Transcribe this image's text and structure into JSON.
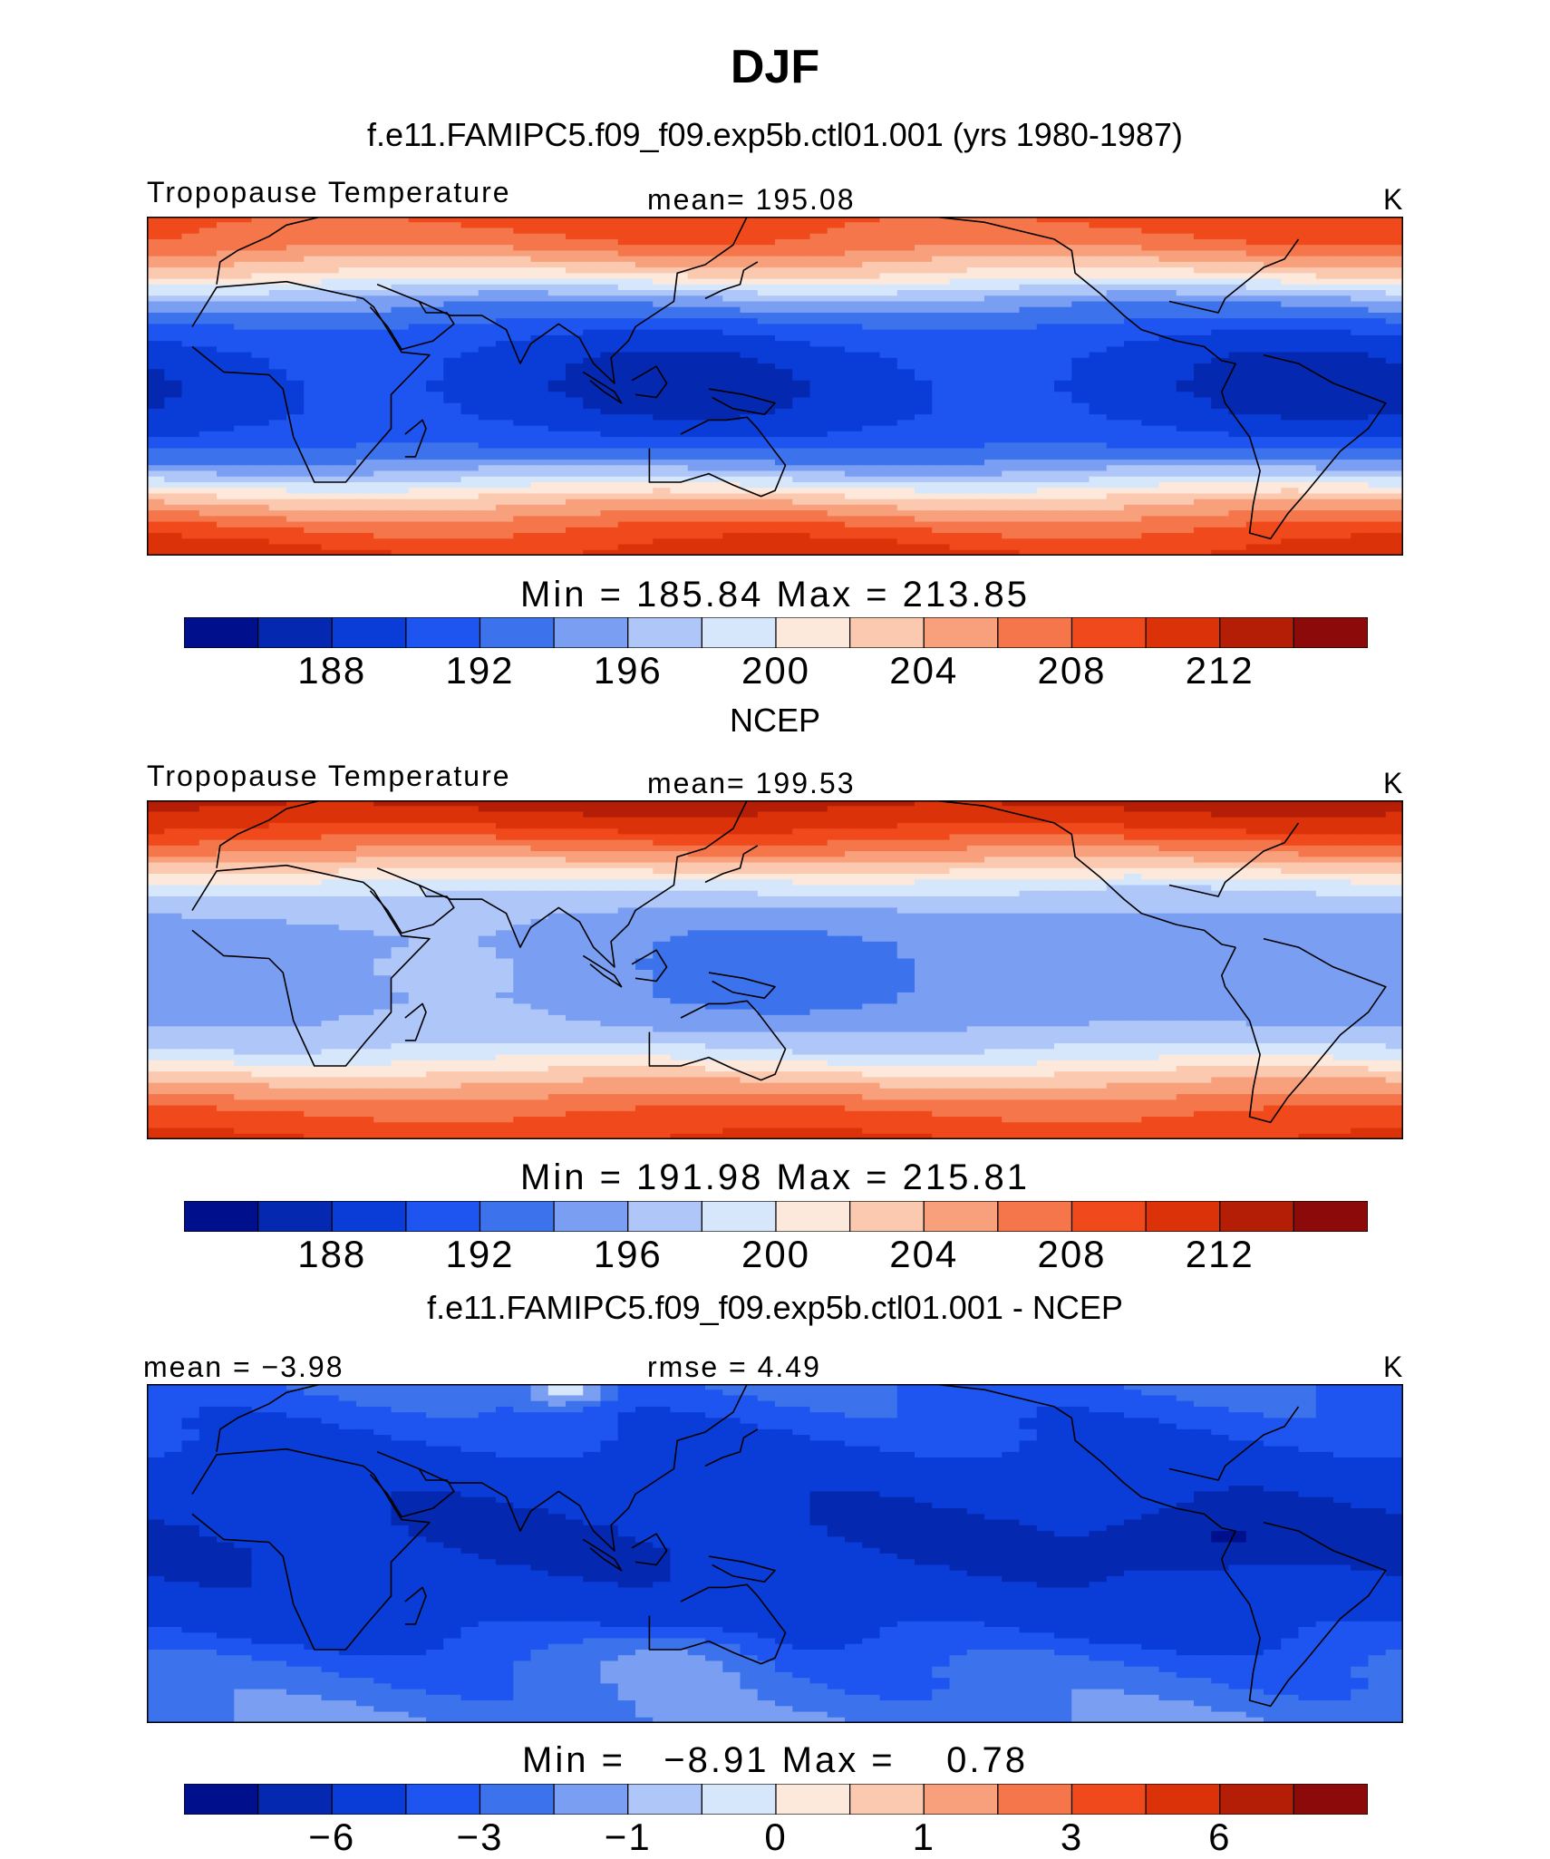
{
  "title": "DJF",
  "panels": [
    {
      "subtitle": "f.e11.FAMIPC5.f09_f09.exp5b.ctl01.001 (yrs 1980-1987)",
      "left_label": "Tropopause Temperature",
      "center_label": "mean= 195.08",
      "right_label": "K",
      "minmax": "Min = 185.84 Max = 213.85",
      "kind": "model"
    },
    {
      "subtitle": "NCEP",
      "left_label": "Tropopause Temperature",
      "center_label": "mean= 199.53",
      "right_label": "K",
      "minmax": "Min = 191.98 Max = 215.81",
      "kind": "obs"
    },
    {
      "subtitle": "f.e11.FAMIPC5.f09_f09.exp5b.ctl01.001 - NCEP",
      "left_label": "mean =  −3.98",
      "center_label": "rmse =    4.49",
      "right_label": "K",
      "minmax": "Min =   −8.91 Max =    0.78",
      "kind": "diff"
    }
  ],
  "colors": {
    "scale": [
      "#00108c",
      "#0428b0",
      "#0a3cd8",
      "#1e55f0",
      "#3c73ec",
      "#7a9ef2",
      "#aec6f8",
      "#d6e6fb",
      "#fde9dc",
      "#fbc9b0",
      "#f8a07c",
      "#f4764a",
      "#f04a1c",
      "#dc320a",
      "#b41e06",
      "#8c0a0a"
    ],
    "land_outline": "#000000"
  },
  "chart_data": [
    {
      "type": "heatmap",
      "title": "DJF",
      "subtitle": "f.e11.FAMIPC5.f09_f09.exp5b.ctl01.001 (yrs 1980-1987)",
      "variable": "Tropopause Temperature",
      "units": "K",
      "mean": 195.08,
      "min": 185.84,
      "max": 213.85,
      "colorbar_ticks": [
        "188",
        "192",
        "196",
        "200",
        "204",
        "208",
        "212"
      ],
      "colorbar_levels": [
        186,
        188,
        190,
        192,
        194,
        196,
        198,
        200,
        202,
        204,
        206,
        208,
        210,
        212,
        214
      ],
      "lat_range": [
        -60,
        60
      ],
      "lon_range": [
        -30,
        330
      ],
      "zonal_profile": {
        "lat": [
          60,
          50,
          40,
          30,
          20,
          10,
          0,
          -10,
          -20,
          -30,
          -40,
          -50,
          -60
        ],
        "value": [
          209,
          207,
          202,
          195,
          191,
          189,
          188.5,
          189,
          191,
          196,
          203,
          208,
          211
        ]
      }
    },
    {
      "type": "heatmap",
      "subtitle": "NCEP",
      "variable": "Tropopause Temperature",
      "units": "K",
      "mean": 199.53,
      "min": 191.98,
      "max": 215.81,
      "colorbar_ticks": [
        "188",
        "192",
        "196",
        "200",
        "204",
        "208",
        "212"
      ],
      "colorbar_levels": [
        186,
        188,
        190,
        192,
        194,
        196,
        198,
        200,
        202,
        204,
        206,
        208,
        210,
        212,
        214
      ],
      "lat_range": [
        -60,
        60
      ],
      "lon_range": [
        -30,
        330
      ],
      "zonal_profile": {
        "lat": [
          60,
          50,
          40,
          30,
          20,
          10,
          0,
          -10,
          -20,
          -30,
          -40,
          -50,
          -60
        ],
        "value": [
          213,
          210,
          205,
          199,
          196,
          195,
          195,
          195,
          196,
          199,
          204,
          208,
          210
        ]
      }
    },
    {
      "type": "heatmap",
      "subtitle": "f.e11.FAMIPC5.f09_f09.exp5b.ctl01.001 - NCEP",
      "units": "K",
      "mean": -3.98,
      "rmse": 4.49,
      "min": -8.91,
      "max": 0.78,
      "colorbar_ticks": [
        "−6",
        "−3",
        "−1",
        "0",
        "1",
        "3",
        "6"
      ],
      "colorbar_levels": [
        -8,
        -6,
        -4,
        -3,
        -2,
        -1,
        -0.5,
        0,
        0.5,
        1,
        2,
        3,
        4,
        6,
        8
      ],
      "lat_range": [
        -60,
        60
      ],
      "lon_range": [
        -30,
        330
      ],
      "zonal_profile": {
        "lat": [
          60,
          50,
          40,
          30,
          20,
          10,
          0,
          -10,
          -20,
          -30,
          -40,
          -50,
          -60
        ],
        "value": [
          -3,
          -3.5,
          -4,
          -5,
          -5.5,
          -6,
          -6,
          -5.5,
          -5,
          -4,
          -3,
          -2.5,
          -2
        ]
      }
    }
  ]
}
